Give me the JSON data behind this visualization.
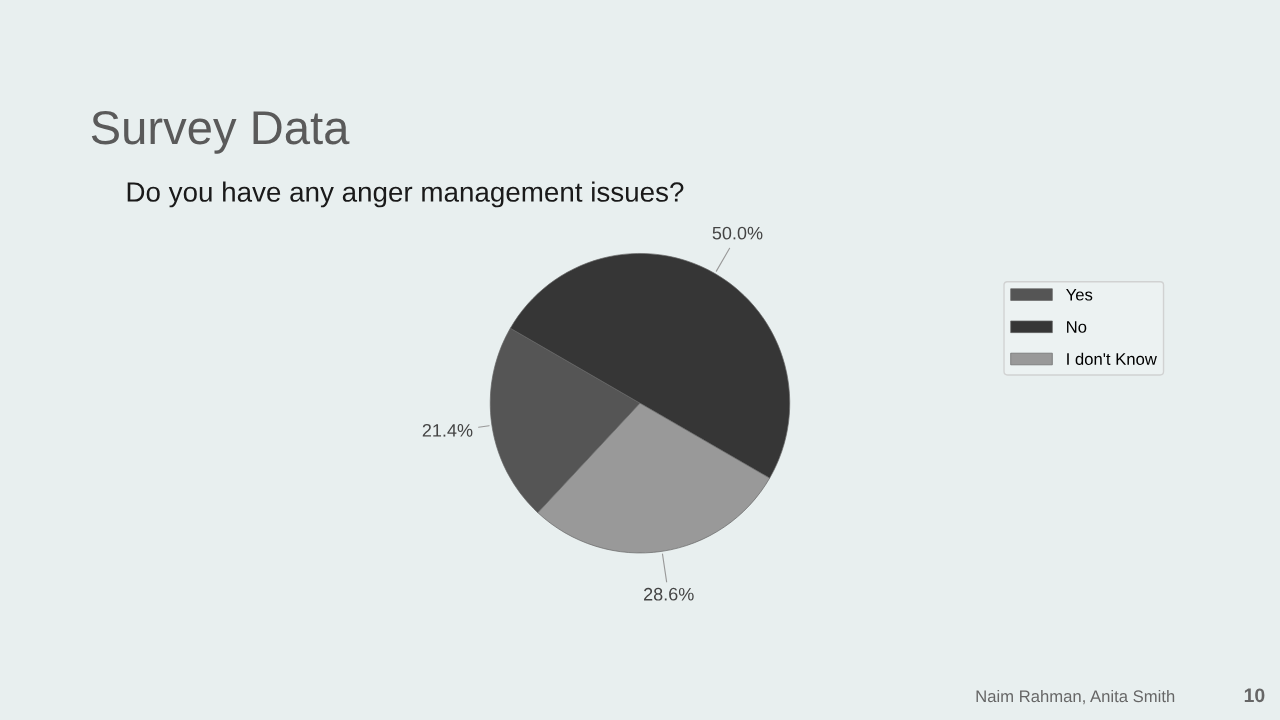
{
  "chart_data": {
    "type": "pie",
    "title": "Survey Data",
    "subtitle": "Do you have any anger management issues?",
    "categories": [
      "Yes",
      "No",
      "I don't Know"
    ],
    "values": [
      21.4,
      50.0,
      28.6
    ],
    "value_labels": [
      "21.4%",
      "50.0%",
      "28.6%"
    ],
    "colors": [
      "#555555",
      "#363636",
      "#999999"
    ],
    "legend": "right",
    "annotations": [
      "Naim Rahman, Anita Smith",
      "10"
    ]
  }
}
